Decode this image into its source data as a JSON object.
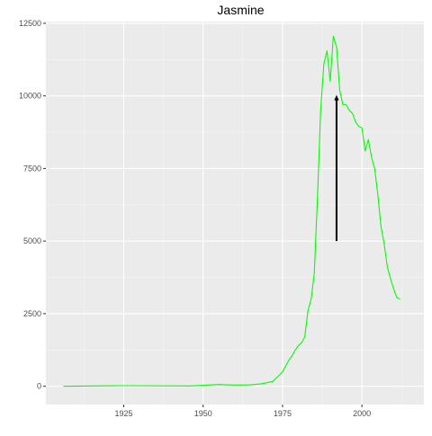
{
  "chart_data": {
    "type": "line",
    "title": "Jasmine",
    "xlabel": "",
    "ylabel": "",
    "xlim": [
      1900.5,
      2019.5
    ],
    "ylim": [
      -630,
      12560
    ],
    "grid": true,
    "x_ticks": [
      1925,
      1950,
      1975,
      2000
    ],
    "x_tick_labels": [
      "1925",
      "1950",
      "1975",
      "2000"
    ],
    "y_ticks": [
      0,
      2500,
      5000,
      7500,
      10000,
      12500
    ],
    "y_tick_labels": [
      "0",
      "2500",
      "5000",
      "7500",
      "10000",
      "12500"
    ],
    "series": [
      {
        "color": "#00ff00",
        "x": [
          1906,
          1925,
          1946,
          1955,
          1960,
          1965,
          1968,
          1970,
          1972,
          1973,
          1974,
          1975,
          1976,
          1977,
          1978,
          1979,
          1980,
          1981,
          1982,
          1983,
          1984,
          1985,
          1986,
          1987,
          1988,
          1989,
          1990,
          1991,
          1992,
          1993,
          1994,
          1995,
          1996,
          1997,
          1998,
          1999,
          2000,
          2001,
          2002,
          2003,
          2004,
          2005,
          2006,
          2007,
          2008,
          2009,
          2010,
          2011,
          2012,
          2013,
          2014
        ],
        "y": [
          0,
          20,
          10,
          60,
          40,
          50,
          80,
          120,
          170,
          280,
          380,
          500,
          700,
          900,
          1050,
          1250,
          1400,
          1500,
          1700,
          2600,
          3000,
          3900,
          6500,
          9500,
          11100,
          11550,
          10500,
          12050,
          11700,
          10200,
          9700,
          9700,
          9500,
          9400,
          9100,
          8950,
          8900,
          8100,
          8500,
          7900,
          7500,
          6600,
          5500,
          4900,
          4100,
          3700,
          3350,
          3050,
          3000,
          null,
          null
        ]
      }
    ],
    "annotations": [
      {
        "type": "arrow",
        "x": 1992,
        "y_start": 5000,
        "y_end": 10000,
        "color": "#000000"
      }
    ]
  }
}
